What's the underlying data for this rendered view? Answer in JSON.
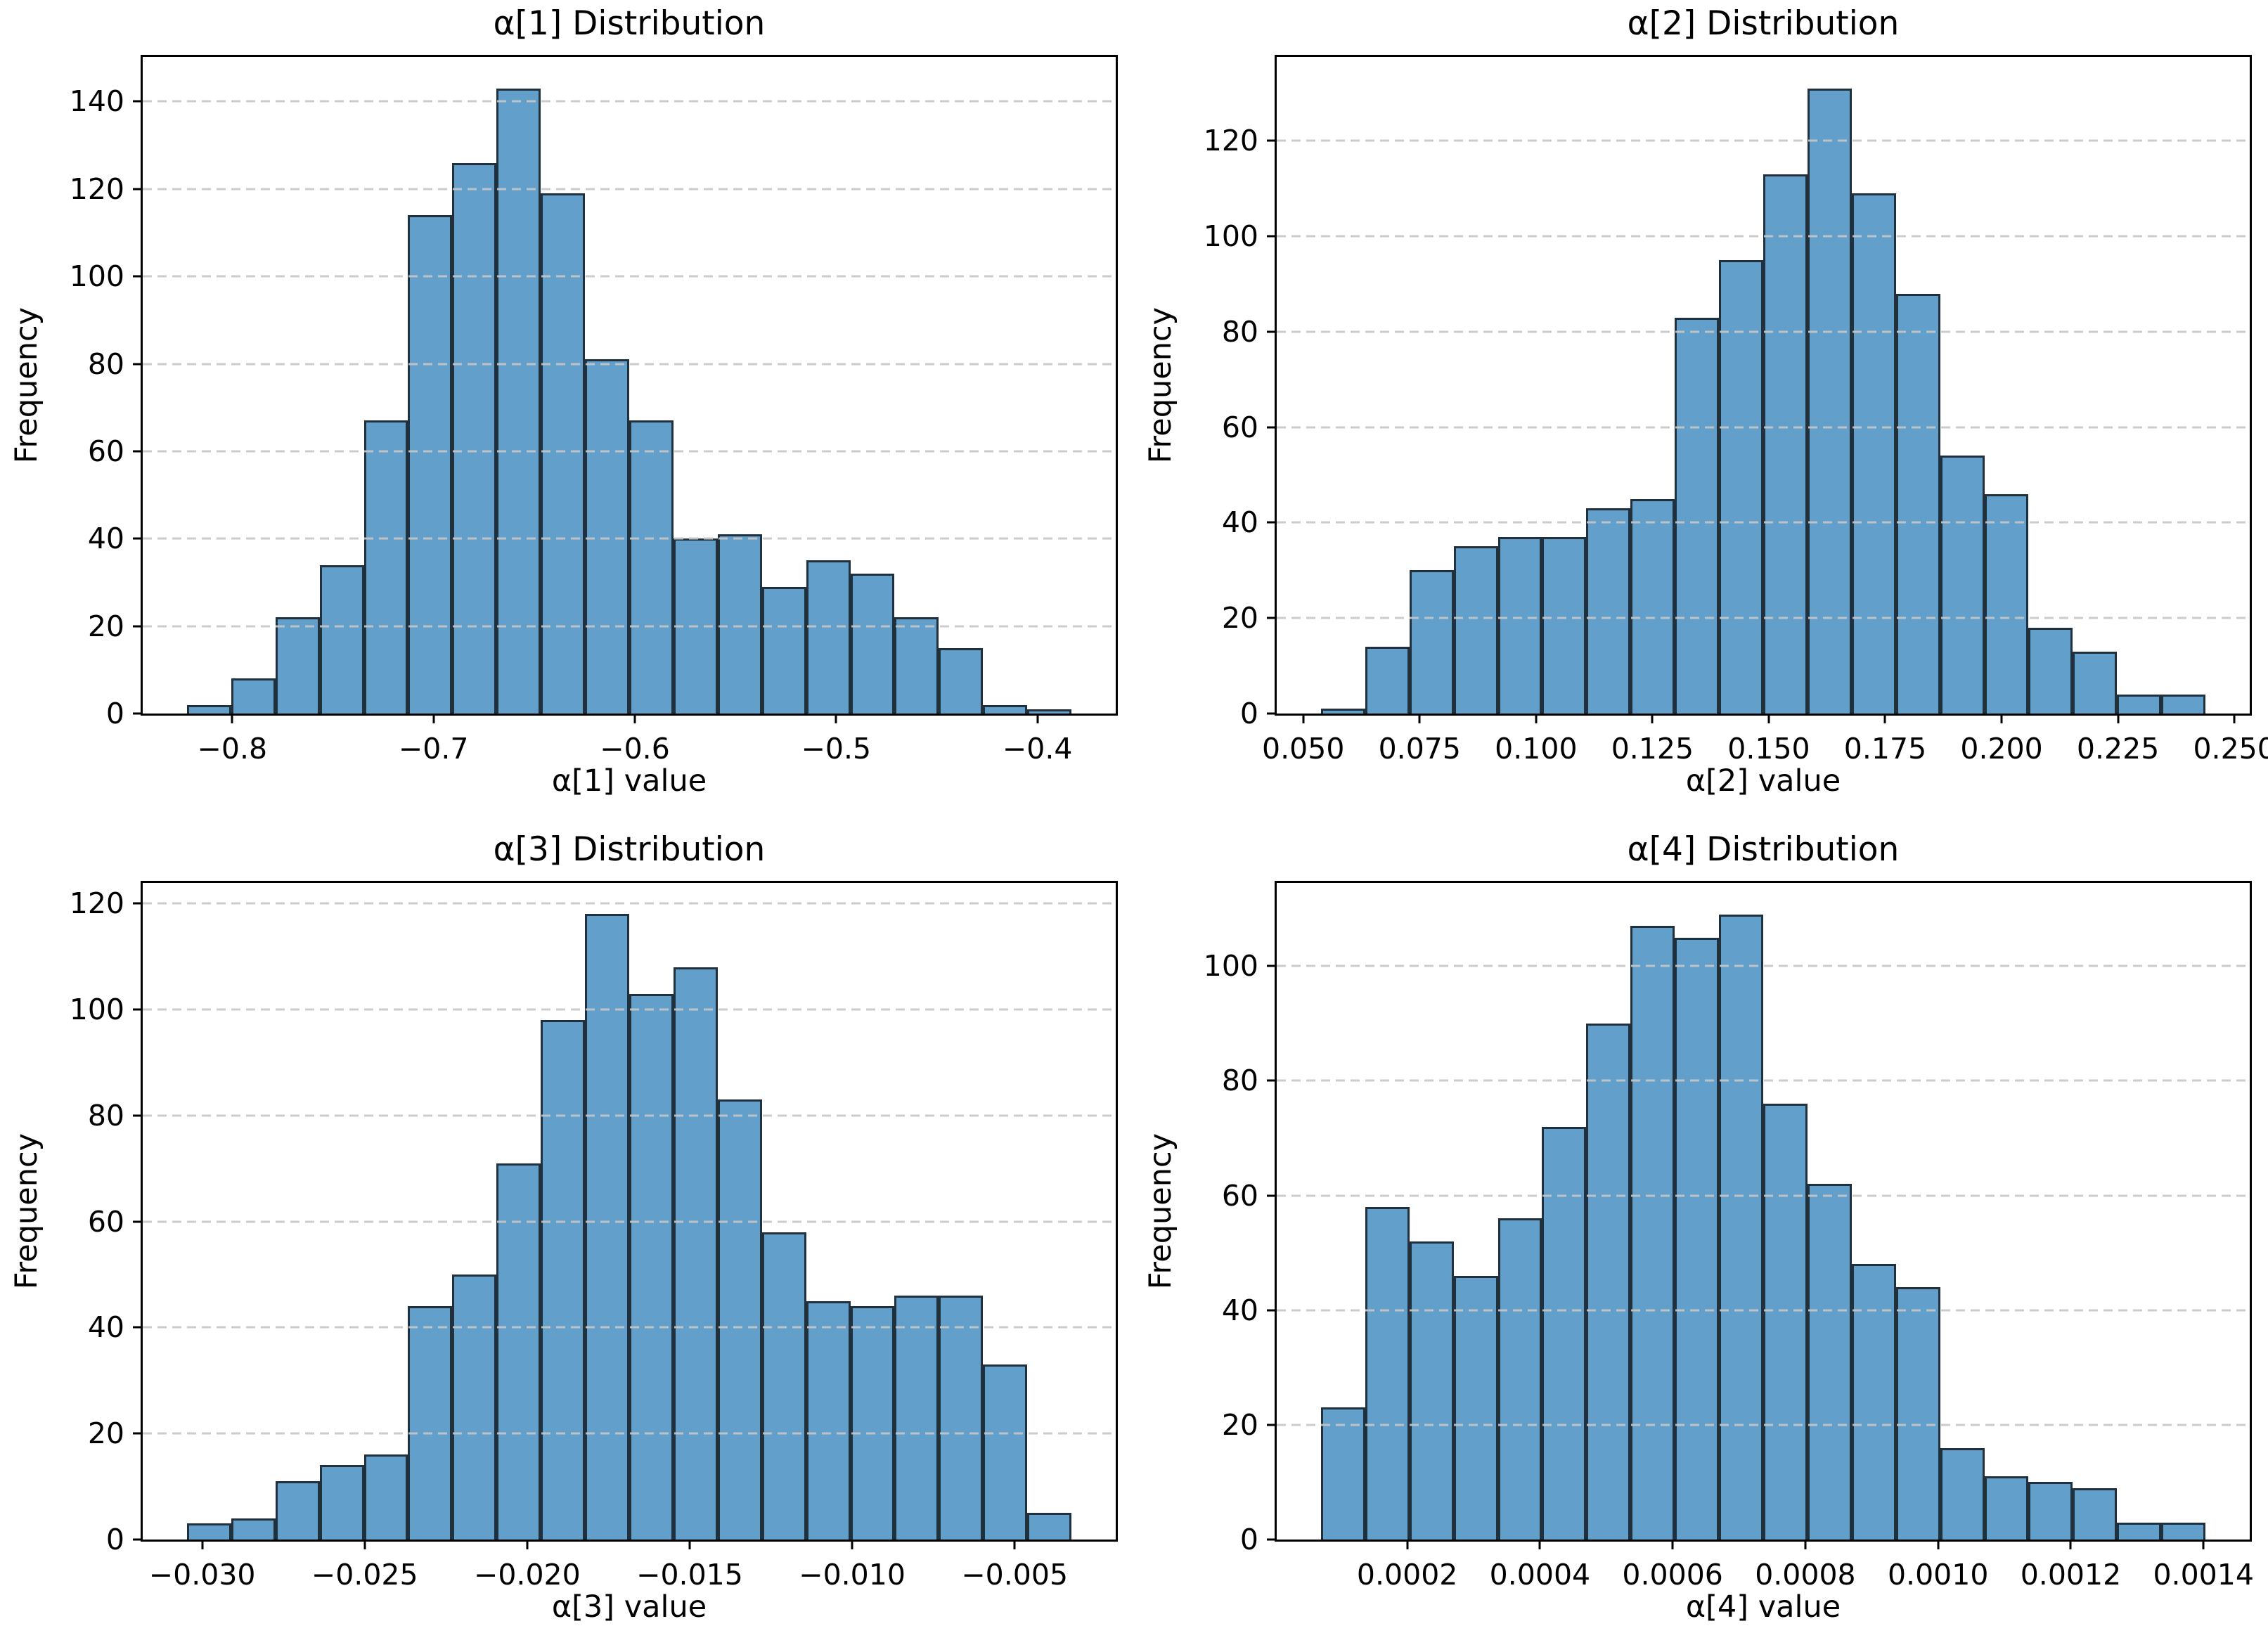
{
  "figure": {
    "rows": 2,
    "cols": 2
  },
  "style": {
    "bar_fill": "#62a0cb",
    "bar_edge": "#20303d",
    "grid_color": "#c6c6c6",
    "spine_color": "#000000",
    "text_color": "#000000",
    "background": "#ffffff"
  },
  "chart_data": [
    {
      "type": "bar",
      "subtype": "histogram",
      "title": "α[1] Distribution",
      "xlabel": "α[1] value",
      "ylabel": "Frequency",
      "bin_start": -0.8225,
      "bin_width": 0.02197,
      "counts": [
        2,
        8,
        22,
        34,
        67,
        114,
        126,
        143,
        119,
        81,
        67,
        40,
        41,
        29,
        35,
        32,
        22,
        15,
        2,
        1
      ],
      "xlim": [
        -0.84447,
        -0.36113
      ],
      "ylim": [
        0,
        150.2
      ],
      "xticks": [
        -0.8,
        -0.7,
        -0.6,
        -0.5,
        -0.4
      ],
      "xtick_labels": [
        "−0.8",
        "−0.7",
        "−0.6",
        "−0.5",
        "−0.4"
      ],
      "yticks": [
        0,
        20,
        40,
        60,
        80,
        100,
        120,
        140
      ],
      "grid": "y-dashed",
      "legend": "none"
    },
    {
      "type": "bar",
      "subtype": "histogram",
      "title": "α[2] Distribution",
      "xlabel": "α[2] value",
      "ylabel": "Frequency",
      "bin_start": 0.0538,
      "bin_width": 0.0095,
      "counts": [
        1,
        14,
        30,
        35,
        37,
        37,
        43,
        45,
        83,
        95,
        113,
        131,
        109,
        88,
        54,
        46,
        18,
        13,
        4,
        4
      ],
      "xlim": [
        0.0443,
        0.2533
      ],
      "ylim": [
        0,
        137.6
      ],
      "xticks": [
        0.05,
        0.075,
        0.1,
        0.125,
        0.15,
        0.175,
        0.2,
        0.225,
        0.25
      ],
      "xtick_labels": [
        "0.050",
        "0.075",
        "0.100",
        "0.125",
        "0.150",
        "0.175",
        "0.200",
        "0.225",
        "0.250"
      ],
      "yticks": [
        0,
        20,
        40,
        60,
        80,
        100,
        120
      ],
      "grid": "y-dashed",
      "legend": "none"
    },
    {
      "type": "bar",
      "subtype": "histogram",
      "title": "α[3] Distribution",
      "xlabel": "α[3] value",
      "ylabel": "Frequency",
      "bin_start": -0.03047,
      "bin_width": 0.001361,
      "counts": [
        3,
        4,
        11,
        14,
        16,
        44,
        50,
        71,
        98,
        118,
        103,
        108,
        83,
        58,
        45,
        44,
        46,
        46,
        33,
        5
      ],
      "xlim": [
        -0.031831,
        -0.001889
      ],
      "ylim": [
        0,
        123.9
      ],
      "xticks": [
        -0.03,
        -0.025,
        -0.02,
        -0.015,
        -0.01,
        -0.005
      ],
      "xtick_labels": [
        "−0.030",
        "−0.025",
        "−0.020",
        "−0.015",
        "−0.010",
        "−0.005"
      ],
      "yticks": [
        0,
        20,
        40,
        60,
        80,
        100,
        120
      ],
      "grid": "y-dashed",
      "legend": "none"
    },
    {
      "type": "bar",
      "subtype": "histogram",
      "title": "α[4] Distribution",
      "xlabel": "α[4] value",
      "ylabel": "Frequency",
      "bin_start": 7e-05,
      "bin_width": 6.665e-05,
      "counts": [
        23,
        58,
        52,
        46,
        56,
        72,
        90,
        107,
        105,
        109,
        76,
        62,
        48,
        44,
        16,
        11,
        10,
        9,
        3,
        3
      ],
      "xlim": [
        3.3e-06,
        0.0014697
      ],
      "ylim": [
        0,
        114.5
      ],
      "xticks": [
        0.0002,
        0.0004,
        0.0006,
        0.0008,
        0.001,
        0.0012,
        0.0014
      ],
      "xtick_labels": [
        "0.0002",
        "0.0004",
        "0.0006",
        "0.0008",
        "0.0010",
        "0.0012",
        "0.0014"
      ],
      "yticks": [
        0,
        20,
        40,
        60,
        80,
        100
      ],
      "grid": "y-dashed",
      "legend": "none"
    }
  ]
}
